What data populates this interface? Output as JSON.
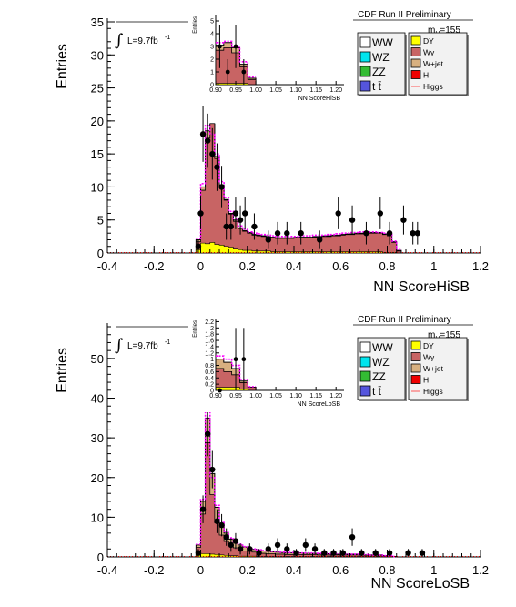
{
  "legend_label_header": "CDF Run II Preliminary",
  "colors": {
    "WW": "#ffffff",
    "WZ": "#00e5ee",
    "ZZ": "#33bb33",
    "tt": "#5555dd",
    "DY": "#ffff00",
    "Wgamma": "#c86464",
    "Wjet": "#d8b080",
    "H": "#ee0000",
    "Higgs": "#ff00ff",
    "data": "#000000"
  },
  "chart_data": [
    {
      "type": "histogram",
      "title": "",
      "xlabel": "NN ScoreHiSB",
      "ylabel": "Entries",
      "xlim": [
        -0.4,
        1.2
      ],
      "ylim": [
        0,
        35
      ],
      "xticks": [
        "-0.4",
        "-0.2",
        "0",
        "0.2",
        "0.4",
        "0.6",
        "0.8",
        "1",
        "1.2"
      ],
      "yticks": [
        "0",
        "5",
        "10",
        "15",
        "20",
        "25",
        "30",
        "35"
      ],
      "header": "CDF Run II Preliminary",
      "luminosity": "L=9.7fb",
      "lumi_sup": "-1",
      "mass_label": "m",
      "mass_sub": "H",
      "mass_value": "=155",
      "legend_left": [
        {
          "key": "WW",
          "label": "WW"
        },
        {
          "key": "WZ",
          "label": "WZ"
        },
        {
          "key": "ZZ",
          "label": "ZZ"
        },
        {
          "key": "tt",
          "label": "t t̄"
        }
      ],
      "legend_right": [
        {
          "key": "DY",
          "label": "DY"
        },
        {
          "key": "Wgamma",
          "label": "Wγ"
        },
        {
          "key": "Wjet",
          "label": "W+jet"
        },
        {
          "key": "H",
          "label": "H"
        },
        {
          "key": "Higgs",
          "label": "Higgs"
        }
      ],
      "bin_start": -0.02,
      "bin_width": 0.02,
      "bins": {
        "Wgamma": [
          1.2,
          8,
          16,
          18,
          13,
          9,
          7,
          5,
          4.2,
          3.2,
          2.9,
          2.6,
          2.4,
          2.3,
          2.2,
          2.1,
          2.1,
          2.0,
          2.0,
          2.0,
          2.0,
          2.1,
          2.1,
          2.1,
          2.1,
          2.2,
          2.2,
          2.3,
          2.3,
          2.4,
          2.4,
          2.5,
          2.6,
          2.6,
          2.7,
          2.7,
          2.8,
          2.8,
          2.8,
          2.8,
          2.7,
          2.5,
          1.5,
          0.3,
          0,
          0,
          0,
          0,
          0,
          0,
          0,
          0,
          0,
          0,
          0,
          0
        ],
        "DY": [
          0.5,
          1.5,
          1.4,
          1.6,
          1.3,
          1.2,
          1.0,
          0.9,
          0.6,
          0.5,
          0.4,
          0.4,
          0.3,
          0.3,
          0.3,
          0.3,
          0.2,
          0.2,
          0.2,
          0.2,
          0.2,
          0.2,
          0.2,
          0.2,
          0.2,
          0.2,
          0.2,
          0.2,
          0.2,
          0.2,
          0.2,
          0.2,
          0.2,
          0.2,
          0.2,
          0.2,
          0.2,
          0.2,
          0.2,
          0.2,
          0.1,
          0.1,
          0.1,
          0,
          0,
          0,
          0,
          0,
          0,
          0,
          0,
          0,
          0,
          0,
          0,
          0
        ],
        "total": [
          2.0,
          10.0,
          18.5,
          19.5,
          14.6,
          10.3,
          8.1,
          6.0,
          5.0,
          3.8,
          3.4,
          3.1,
          2.8,
          2.7,
          2.6,
          2.5,
          2.4,
          2.3,
          2.3,
          2.3,
          2.3,
          2.4,
          2.4,
          2.4,
          2.4,
          2.5,
          2.5,
          2.6,
          2.6,
          2.7,
          2.7,
          2.8,
          2.9,
          2.9,
          3.0,
          3.0,
          3.1,
          3.1,
          3.1,
          3.1,
          2.9,
          2.7,
          1.7,
          0.4,
          0,
          0,
          0,
          0,
          0,
          0,
          0,
          0,
          0,
          0,
          0,
          0
        ]
      },
      "higgs": [
        2.2,
        10.5,
        19.3,
        18.0,
        15.0,
        10.8,
        8.4,
        6.3,
        5.2,
        4.1,
        3.6,
        3.2,
        3.0,
        2.9,
        2.8,
        2.7,
        2.6,
        2.5,
        2.5,
        2.5,
        2.5,
        2.5,
        2.6,
        2.6,
        2.6,
        2.7,
        2.7,
        2.7,
        2.8,
        2.8,
        2.9,
        3.0,
        3.0,
        3.1,
        3.1,
        3.2,
        3.2,
        3.2,
        3.2,
        3.1,
        3.0,
        2.8,
        1.8,
        0.5
      ],
      "points": [
        {
          "x": -0.01,
          "y": 1,
          "e": 1
        },
        {
          "x": -0.0,
          "y": 6,
          "e": 2.4
        },
        {
          "x": 0.01,
          "y": 18,
          "e": 4.2
        },
        {
          "x": 0.03,
          "y": 17,
          "e": 4.1
        },
        {
          "x": 0.05,
          "y": 15,
          "e": 3.9
        },
        {
          "x": 0.07,
          "y": 13,
          "e": 3.6
        },
        {
          "x": 0.09,
          "y": 10,
          "e": 3.2
        },
        {
          "x": 0.11,
          "y": 4,
          "e": 2
        },
        {
          "x": 0.13,
          "y": 4,
          "e": 2
        },
        {
          "x": 0.15,
          "y": 6,
          "e": 2.4
        },
        {
          "x": 0.17,
          "y": 5,
          "e": 2.2
        },
        {
          "x": 0.19,
          "y": 6,
          "e": 2.4
        },
        {
          "x": 0.23,
          "y": 4,
          "e": 2
        },
        {
          "x": 0.29,
          "y": 2,
          "e": 1.4
        },
        {
          "x": 0.33,
          "y": 3,
          "e": 1.7
        },
        {
          "x": 0.37,
          "y": 3,
          "e": 1.7
        },
        {
          "x": 0.43,
          "y": 3,
          "e": 1.7
        },
        {
          "x": 0.51,
          "y": 2,
          "e": 1.4
        },
        {
          "x": 0.59,
          "y": 6,
          "e": 2.4
        },
        {
          "x": 0.65,
          "y": 5,
          "e": 2.2
        },
        {
          "x": 0.71,
          "y": 3,
          "e": 1.7
        },
        {
          "x": 0.77,
          "y": 6,
          "e": 2.4
        },
        {
          "x": 0.81,
          "y": 3,
          "e": 1.7
        },
        {
          "x": 0.87,
          "y": 5,
          "e": 2.2
        },
        {
          "x": 0.91,
          "y": 3,
          "e": 1.7
        },
        {
          "x": 0.93,
          "y": 3,
          "e": 1.7
        }
      ],
      "inset": {
        "xlabel": "NN ScoreHiSB",
        "ylabel": "Entries",
        "xlim": [
          0.9,
          1.22
        ],
        "ylim": [
          0,
          5.5
        ],
        "xticks": [
          "0.90",
          "0.95",
          "1.00",
          "1.05",
          "1.10",
          "1.15",
          "1.20"
        ],
        "yticks": [
          "0",
          "1",
          "2",
          "3",
          "4",
          "5"
        ],
        "bin_start": 0.9,
        "bin_width": 0.02,
        "bins": {
          "Wgamma": [
            2.6,
            2.8,
            2.4,
            1.3,
            0.4,
            0,
            0,
            0,
            0,
            0,
            0,
            0,
            0,
            0,
            0,
            0
          ],
          "DY": [
            0.1,
            0.1,
            0.1,
            0.1,
            0,
            0,
            0,
            0,
            0,
            0,
            0,
            0,
            0,
            0,
            0,
            0
          ],
          "total": [
            3.1,
            3.3,
            2.9,
            1.6,
            0.5,
            0,
            0,
            0,
            0,
            0,
            0,
            0,
            0,
            0,
            0,
            0
          ]
        },
        "higgs": [
          3.3,
          3.4,
          3.0,
          1.8,
          0.6
        ],
        "points": [
          {
            "x": 0.91,
            "y": 3,
            "e": 1.7
          },
          {
            "x": 0.93,
            "y": 1,
            "e": 1
          },
          {
            "x": 0.95,
            "y": 3,
            "e": 1.7
          },
          {
            "x": 0.97,
            "y": 1,
            "e": 1
          }
        ]
      }
    },
    {
      "type": "histogram",
      "title": "",
      "xlabel": "NN ScoreLoSB",
      "ylabel": "Entries",
      "xlim": [
        -0.4,
        1.2
      ],
      "ylim": [
        0,
        58
      ],
      "xticks": [
        "-0.4",
        "-0.2",
        "0",
        "0.2",
        "0.4",
        "0.6",
        "0.8",
        "1",
        "1.2"
      ],
      "yticks": [
        "0",
        "10",
        "20",
        "30",
        "40",
        "50"
      ],
      "header": "CDF Run II Preliminary",
      "luminosity": "L=9.7fb",
      "lumi_sup": "-1",
      "mass_label": "m",
      "mass_sub": "H",
      "mass_value": "=155",
      "legend_left": [
        {
          "key": "WW",
          "label": "WW"
        },
        {
          "key": "WZ",
          "label": "WZ"
        },
        {
          "key": "ZZ",
          "label": "ZZ"
        },
        {
          "key": "tt",
          "label": "t t̄"
        }
      ],
      "legend_right": [
        {
          "key": "DY",
          "label": "DY"
        },
        {
          "key": "Wgamma",
          "label": "Wγ"
        },
        {
          "key": "Wjet",
          "label": "W+jet"
        },
        {
          "key": "H",
          "label": "H"
        },
        {
          "key": "Higgs",
          "label": "Higgs"
        }
      ],
      "bin_start": -0.02,
      "bin_width": 0.02,
      "bins": {
        "Wgamma": [
          2,
          10,
          28,
          15,
          8,
          5,
          3.5,
          2.5,
          2,
          1.6,
          1.3,
          1.2,
          1,
          0.9,
          0.8,
          0.7,
          0.7,
          0.6,
          0.6,
          0.5,
          0.5,
          0.5,
          0.5,
          0.5,
          0.5,
          0.5,
          0.4,
          0.4,
          0.4,
          0.4,
          0.4,
          0.4,
          0.4,
          0.4,
          0.4,
          0.4,
          0.3,
          0.3,
          0.3,
          0.3,
          0.2,
          0.2,
          0.1,
          0,
          0,
          0,
          0,
          0,
          0,
          0,
          0,
          0,
          0,
          0,
          0,
          0
        ],
        "DY": [
          0.4,
          0.8,
          0.8,
          0.7,
          0.6,
          0.5,
          0.4,
          0.3,
          0.3,
          0.2,
          0.2,
          0.2,
          0.2,
          0.1,
          0.1,
          0.1,
          0.1,
          0.1,
          0.1,
          0.1,
          0.1,
          0.1,
          0.1,
          0.1,
          0.1,
          0.1,
          0.1,
          0.1,
          0.1,
          0.1,
          0.1,
          0.1,
          0.1,
          0.1,
          0.1,
          0.1,
          0.1,
          0.1,
          0.1,
          0.1,
          0.1,
          0.1,
          0,
          0,
          0,
          0,
          0,
          0,
          0,
          0,
          0,
          0,
          0,
          0,
          0,
          0
        ],
        "total": [
          3,
          14,
          35,
          21,
          12.5,
          8.5,
          6,
          4.5,
          3.6,
          3,
          2.5,
          2.2,
          1.9,
          1.7,
          1.5,
          1.4,
          1.3,
          1.2,
          1.1,
          1.0,
          1.0,
          1.0,
          1.0,
          0.9,
          0.9,
          0.9,
          0.8,
          0.8,
          0.8,
          0.8,
          0.7,
          0.7,
          0.7,
          0.7,
          0.7,
          0.6,
          0.5,
          0.5,
          0.5,
          0.5,
          0.3,
          0.3,
          0.1,
          0,
          0,
          0,
          0,
          0,
          0,
          0,
          0,
          0,
          0,
          0,
          0,
          0
        ]
      },
      "higgs": [
        3.2,
        14.5,
        37,
        20,
        13,
        9,
        6.4,
        4.8,
        3.8,
        3.2,
        2.6,
        2.3,
        2.0,
        1.8,
        1.6,
        1.5,
        1.4,
        1.3,
        1.2,
        1.1,
        1.1,
        1.1,
        1.0,
        1.0,
        1.0,
        0.9,
        0.9,
        0.9,
        0.8,
        0.8,
        0.8,
        0.8,
        0.7,
        0.7,
        0.7,
        0.6,
        0.6,
        0.5,
        0.5,
        0.5,
        0.3,
        0.3,
        0.1
      ],
      "points": [
        {
          "x": -0.01,
          "y": 1,
          "e": 1
        },
        {
          "x": 0.01,
          "y": 12,
          "e": 3.5
        },
        {
          "x": 0.03,
          "y": 31,
          "e": 5.6
        },
        {
          "x": 0.05,
          "y": 22,
          "e": 4.7
        },
        {
          "x": 0.07,
          "y": 9,
          "e": 3
        },
        {
          "x": 0.09,
          "y": 8,
          "e": 2.8
        },
        {
          "x": 0.11,
          "y": 5,
          "e": 2.2
        },
        {
          "x": 0.13,
          "y": 3,
          "e": 1.7
        },
        {
          "x": 0.15,
          "y": 4,
          "e": 2
        },
        {
          "x": 0.17,
          "y": 2,
          "e": 1.4
        },
        {
          "x": 0.21,
          "y": 2,
          "e": 1.4
        },
        {
          "x": 0.25,
          "y": 1,
          "e": 1
        },
        {
          "x": 0.29,
          "y": 2,
          "e": 1.4
        },
        {
          "x": 0.33,
          "y": 3,
          "e": 1.7
        },
        {
          "x": 0.37,
          "y": 2,
          "e": 1.4
        },
        {
          "x": 0.41,
          "y": 1,
          "e": 1
        },
        {
          "x": 0.45,
          "y": 3,
          "e": 1.7
        },
        {
          "x": 0.49,
          "y": 2,
          "e": 1.4
        },
        {
          "x": 0.53,
          "y": 1,
          "e": 1
        },
        {
          "x": 0.57,
          "y": 1,
          "e": 1
        },
        {
          "x": 0.61,
          "y": 1,
          "e": 1
        },
        {
          "x": 0.65,
          "y": 5,
          "e": 2.2
        },
        {
          "x": 0.69,
          "y": 1,
          "e": 1
        },
        {
          "x": 0.75,
          "y": 1,
          "e": 1
        },
        {
          "x": 0.81,
          "y": 1,
          "e": 1
        },
        {
          "x": 0.89,
          "y": 1,
          "e": 1
        },
        {
          "x": 0.95,
          "y": 1,
          "e": 1
        }
      ],
      "inset": {
        "xlabel": "NN ScoreLoSB",
        "ylabel": "Entries",
        "xlim": [
          0.9,
          1.22
        ],
        "ylim": [
          0,
          2.3
        ],
        "xticks": [
          "0.90",
          "0.95",
          "1.00",
          "1.05",
          "1.10",
          "1.15",
          "1.20"
        ],
        "yticks": [
          "0",
          "0.2",
          "0.4",
          "0.6",
          "0.8",
          "1",
          "1.2",
          "1.4",
          "1.6",
          "1.8",
          "2",
          "2.2"
        ],
        "bin_start": 0.9,
        "bin_width": 0.02,
        "bins": {
          "Wgamma": [
            0.6,
            0.5,
            0.4,
            0.2,
            0.1,
            0,
            0,
            0,
            0,
            0,
            0,
            0,
            0,
            0,
            0,
            0
          ],
          "DY": [
            0.1,
            0.1,
            0.1,
            0.05,
            0,
            0,
            0,
            0,
            0,
            0,
            0,
            0,
            0,
            0,
            0,
            0
          ],
          "total": [
            1.0,
            0.9,
            0.7,
            0.3,
            0.1,
            0,
            0,
            0,
            0,
            0,
            0,
            0,
            0,
            0,
            0,
            0
          ]
        },
        "higgs": [
          1.1,
          1.0,
          0.8,
          0.35,
          0.12
        ],
        "points": [
          {
            "x": 0.91,
            "y": 0,
            "e": 0
          },
          {
            "x": 0.95,
            "y": 1,
            "e": 1
          },
          {
            "x": 0.97,
            "y": 1,
            "e": 1
          }
        ]
      }
    }
  ]
}
